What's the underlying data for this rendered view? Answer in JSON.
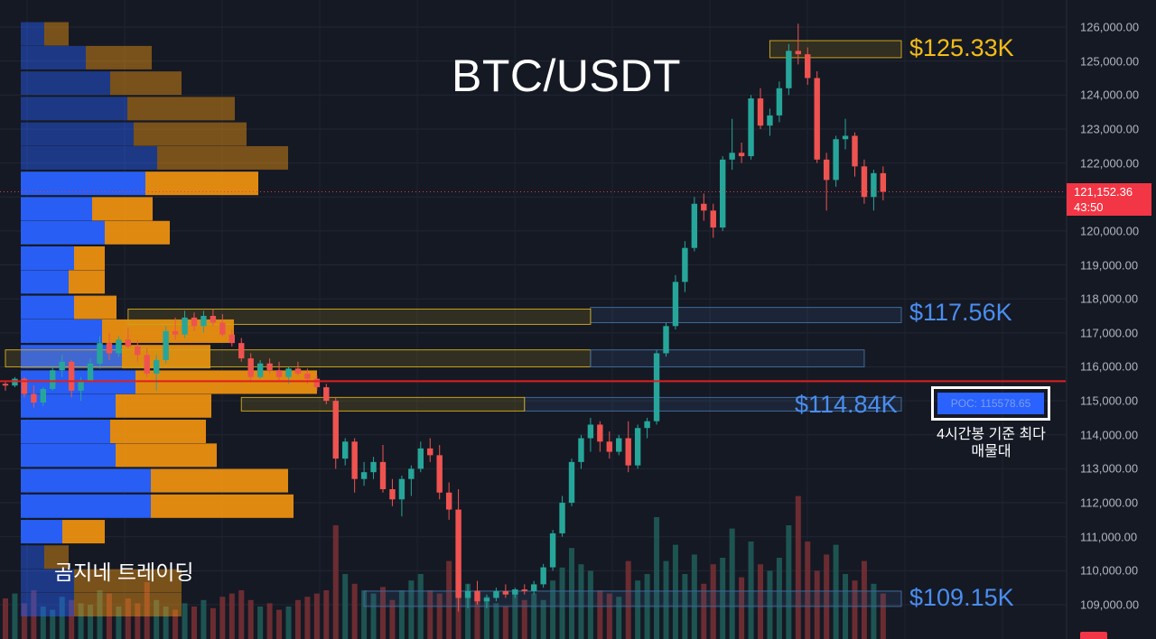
{
  "chart_data": {
    "type": "candlestick",
    "title": "BTC/USDT",
    "watermark": "곰지네 트레이딩",
    "y_axis": {
      "ylim": [
        108500,
        126500
      ],
      "ticks": [
        {
          "value": 126000,
          "label": "126,000.00"
        },
        {
          "value": 125000,
          "label": "125,000.00"
        },
        {
          "value": 124000,
          "label": "124,000.00"
        },
        {
          "value": 123000,
          "label": "123,000.00"
        },
        {
          "value": 122000,
          "label": "122,000.00"
        },
        {
          "value": 121000,
          "label": "121,000.00"
        },
        {
          "value": 120000,
          "label": "120,000.00"
        },
        {
          "value": 119000,
          "label": "119,000.00"
        },
        {
          "value": 118000,
          "label": "118,000.00"
        },
        {
          "value": 117000,
          "label": "117,000.00"
        },
        {
          "value": 116000,
          "label": "116,000.00"
        },
        {
          "value": 115000,
          "label": "115,000.00"
        },
        {
          "value": 114000,
          "label": "114,000.00"
        },
        {
          "value": 113000,
          "label": "113,000.00"
        },
        {
          "value": 112000,
          "label": "112,000.00"
        },
        {
          "value": 111000,
          "label": "111,000.00"
        },
        {
          "value": 110000,
          "label": "110,000.00"
        },
        {
          "value": 109000,
          "label": "109,000.00"
        }
      ]
    },
    "current_price": {
      "value": 121152.36,
      "label": "121,152.36",
      "countdown": "43:50"
    },
    "poc": {
      "value": 115578.65,
      "label": "POC: 115578.65",
      "caption": "4시간봉 기준 최다 매물대"
    },
    "levels": [
      {
        "label": "$125.33K",
        "value": 125330,
        "color": "#f5bd16",
        "zone": [
          125100,
          125600
        ],
        "zone_color": "#c9a21a",
        "start_index": 81
      },
      {
        "label": "$117.56K",
        "value": 117560,
        "color": "#4a8ef0",
        "zone": [
          117300,
          117750
        ],
        "zone_color": "#3f6a9a",
        "start_index": 62
      },
      {
        "label": "$114.84K",
        "value": 114840,
        "color": "#4a8ef0",
        "zone": [
          114700,
          115100
        ],
        "zone_color": "#3f6a9a",
        "start_index": 55
      },
      {
        "label": "$109.15K",
        "value": 109150,
        "color": "#4a8ef0",
        "zone": [
          108950,
          109400
        ],
        "zone_color": "#3f6a9a",
        "start_index": 38
      }
    ],
    "extra_zones": [
      {
        "zone": [
          117250,
          117700
        ],
        "color": "#c9a21a",
        "start_index": 13,
        "end_index": 62
      },
      {
        "zone": [
          116000,
          116500
        ],
        "color": "#c9a21a",
        "start_index": 0,
        "end_index": 62
      },
      {
        "zone": [
          116000,
          116500
        ],
        "color": "#3f6a9a",
        "start_index": 62,
        "end_index": 91
      },
      {
        "zone": [
          114700,
          115100
        ],
        "color": "#c9a21a",
        "start_index": 25,
        "end_index": 55
      }
    ],
    "volume_profile": {
      "bins": [
        {
          "price": 125800,
          "buy": 26,
          "sell": 27
        },
        {
          "price": 125100,
          "buy": 72,
          "sell": 73
        },
        {
          "price": 124350,
          "buy": 99,
          "sell": 79
        },
        {
          "price": 123600,
          "buy": 118,
          "sell": 119
        },
        {
          "price": 122850,
          "buy": 125,
          "sell": 125
        },
        {
          "price": 122150,
          "buy": 151,
          "sell": 145
        },
        {
          "price": 121400,
          "buy": 138,
          "sell": 125
        },
        {
          "price": 120650,
          "buy": 79,
          "sell": 67
        },
        {
          "price": 119950,
          "buy": 93,
          "sell": 72
        },
        {
          "price": 119200,
          "buy": 59,
          "sell": 34
        },
        {
          "price": 118500,
          "buy": 53,
          "sell": 40
        },
        {
          "price": 117750,
          "buy": 59,
          "sell": 47
        },
        {
          "price": 117050,
          "buy": 90,
          "sell": 146
        },
        {
          "price": 116300,
          "buy": 112,
          "sell": 98
        },
        {
          "price": 115550,
          "buy": 127,
          "sell": 201
        },
        {
          "price": 114850,
          "buy": 105,
          "sell": 106
        },
        {
          "price": 114100,
          "buy": 99,
          "sell": 106
        },
        {
          "price": 113400,
          "buy": 105,
          "sell": 112
        },
        {
          "price": 112650,
          "buy": 144,
          "sell": 152
        },
        {
          "price": 111900,
          "buy": 144,
          "sell": 158
        },
        {
          "price": 111150,
          "buy": 46,
          "sell": 47
        },
        {
          "price": 110400,
          "buy": 26,
          "sell": 27
        },
        {
          "price": 109700,
          "buy": 59,
          "sell": 119
        },
        {
          "price": 109000,
          "buy": 59,
          "sell": 119
        }
      ]
    },
    "candles": [
      [
        115500,
        115600,
        115300,
        115450
      ],
      [
        115450,
        115700,
        115400,
        115650
      ],
      [
        115650,
        115700,
        115100,
        115200
      ],
      [
        115200,
        115450,
        114800,
        114950
      ],
      [
        114950,
        115400,
        114850,
        115350
      ],
      [
        115350,
        116050,
        115300,
        115900
      ],
      [
        115900,
        116350,
        115700,
        116150
      ],
      [
        116150,
        116200,
        115100,
        115300
      ],
      [
        115300,
        115700,
        115000,
        115600
      ],
      [
        115600,
        116250,
        115550,
        116100
      ],
      [
        116100,
        116900,
        115950,
        116700
      ],
      [
        116700,
        117000,
        116200,
        116400
      ],
      [
        116400,
        116900,
        116300,
        116800
      ],
      [
        116800,
        117150,
        116550,
        116600
      ],
      [
        116600,
        116800,
        116150,
        116350
      ],
      [
        116350,
        116550,
        115700,
        115800
      ],
      [
        115800,
        116350,
        115300,
        116200
      ],
      [
        116200,
        117200,
        116100,
        117050
      ],
      [
        117050,
        117450,
        116800,
        116950
      ],
      [
        116950,
        117650,
        116850,
        117450
      ],
      [
        117450,
        117600,
        117050,
        117200
      ],
      [
        117200,
        117650,
        117000,
        117500
      ],
      [
        117500,
        117700,
        117200,
        117300
      ],
      [
        117300,
        117550,
        116900,
        116950
      ],
      [
        116950,
        117100,
        116600,
        116700
      ],
      [
        116700,
        116850,
        116150,
        116250
      ],
      [
        116250,
        116400,
        115600,
        115700
      ],
      [
        115700,
        116200,
        115650,
        116100
      ],
      [
        116100,
        116250,
        115800,
        115900
      ],
      [
        115900,
        116150,
        115600,
        115700
      ],
      [
        115700,
        116000,
        115500,
        115950
      ],
      [
        115950,
        116150,
        115750,
        115800
      ],
      [
        115800,
        115950,
        115500,
        115650
      ],
      [
        115650,
        115750,
        115300,
        115400
      ],
      [
        115400,
        115500,
        114900,
        115000
      ],
      [
        115000,
        115100,
        113000,
        113300
      ],
      [
        113300,
        113900,
        113100,
        113800
      ],
      [
        113800,
        113900,
        112300,
        112700
      ],
      [
        112700,
        113200,
        112500,
        112900
      ],
      [
        112900,
        113350,
        112700,
        113200
      ],
      [
        113200,
        113700,
        112300,
        112400
      ],
      [
        112400,
        112700,
        111900,
        112100
      ],
      [
        112100,
        112800,
        111600,
        112700
      ],
      [
        112700,
        113100,
        112200,
        113000
      ],
      [
        113000,
        113800,
        112900,
        113600
      ],
      [
        113600,
        113900,
        113200,
        113400
      ],
      [
        113400,
        113700,
        112100,
        112300
      ],
      [
        112300,
        112600,
        111500,
        111800
      ],
      [
        111800,
        112400,
        108800,
        109200
      ],
      [
        109200,
        109600,
        108900,
        109400
      ],
      [
        109400,
        109700,
        109000,
        109100
      ],
      [
        109100,
        109300,
        108900,
        109200
      ],
      [
        109200,
        109500,
        109100,
        109400
      ],
      [
        109400,
        109600,
        109200,
        109300
      ],
      [
        109300,
        109500,
        109200,
        109450
      ],
      [
        109450,
        109600,
        109300,
        109400
      ],
      [
        109400,
        109700,
        109300,
        109600
      ],
      [
        109600,
        110200,
        109500,
        110100
      ],
      [
        110100,
        111200,
        110000,
        111100
      ],
      [
        111100,
        112200,
        111000,
        112000
      ],
      [
        112000,
        113300,
        111900,
        113200
      ],
      [
        113200,
        114000,
        113000,
        113900
      ],
      [
        113900,
        114500,
        113500,
        114300
      ],
      [
        114300,
        114400,
        113500,
        113800
      ],
      [
        113800,
        114100,
        113300,
        113500
      ],
      [
        113500,
        114000,
        113400,
        113900
      ],
      [
        113900,
        114400,
        112900,
        113100
      ],
      [
        113100,
        114300,
        113000,
        114200
      ],
      [
        114200,
        114500,
        113900,
        114400
      ],
      [
        114400,
        116500,
        114300,
        116400
      ],
      [
        116400,
        117300,
        116300,
        117200
      ],
      [
        117200,
        118700,
        117100,
        118500
      ],
      [
        118500,
        119700,
        118200,
        119500
      ],
      [
        119500,
        121000,
        119400,
        120800
      ],
      [
        120800,
        121100,
        120300,
        120600
      ],
      [
        120600,
        120800,
        119800,
        120100
      ],
      [
        120100,
        122200,
        120000,
        122100
      ],
      [
        122100,
        123300,
        121800,
        122300
      ],
      [
        122300,
        122600,
        122000,
        122200
      ],
      [
        122200,
        124000,
        122100,
        123900
      ],
      [
        123900,
        124200,
        123000,
        123100
      ],
      [
        123100,
        123600,
        122800,
        123400
      ],
      [
        123400,
        124400,
        123200,
        124200
      ],
      [
        124200,
        125500,
        124000,
        125300
      ],
      [
        125300,
        126100,
        124900,
        125200
      ],
      [
        125200,
        125400,
        124300,
        124500
      ],
      [
        124500,
        124700,
        122000,
        122100
      ],
      [
        122100,
        122300,
        120600,
        121500
      ],
      [
        121500,
        122800,
        121300,
        122700
      ],
      [
        122700,
        123300,
        122400,
        122800
      ],
      [
        122800,
        122900,
        121600,
        121900
      ],
      [
        121900,
        122100,
        120800,
        121000
      ],
      [
        121000,
        121800,
        120600,
        121700
      ],
      [
        121700,
        121900,
        120900,
        121152
      ]
    ],
    "volume": [
      25,
      28,
      22,
      30,
      20,
      18,
      26,
      24,
      22,
      21,
      30,
      28,
      20,
      25,
      22,
      35,
      24,
      20,
      18,
      22,
      20,
      24,
      19,
      26,
      28,
      30,
      24,
      20,
      22,
      18,
      20,
      24,
      26,
      28,
      30,
      70,
      40,
      34,
      30,
      28,
      32,
      24,
      30,
      36,
      40,
      30,
      28,
      48,
      40,
      34,
      30,
      26,
      22,
      20,
      30,
      24,
      28,
      24,
      36,
      44,
      56,
      46,
      42,
      30,
      28,
      26,
      48,
      36,
      40,
      75,
      48,
      58,
      40,
      52,
      34,
      46,
      50,
      68,
      38,
      60,
      46,
      42,
      50,
      70,
      88,
      60,
      42,
      52,
      58,
      40,
      36,
      48,
      34,
      28
    ],
    "colors": {
      "up": "#26a69a",
      "down": "#ef5350",
      "buy_profile": "#2962ff",
      "sell_profile": "#f5960f",
      "poc_line": "#e01f1f",
      "background": "#151924"
    }
  }
}
